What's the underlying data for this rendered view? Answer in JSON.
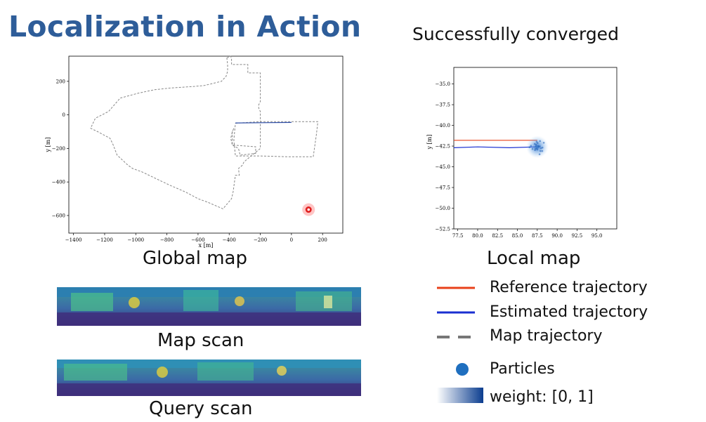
{
  "slide": {
    "title": "Localization in Action",
    "status": "Successfully converged",
    "captions": {
      "global_map": "Global map",
      "local_map": "Local map",
      "map_scan": "Map scan",
      "query_scan": "Query scan"
    }
  },
  "legend": [
    {
      "label": "Reference trajectory",
      "color": "#e8401a",
      "style": "solid"
    },
    {
      "label": "Estimated trajectory",
      "color": "#1a2fd1",
      "style": "solid"
    },
    {
      "label": "Map trajectory",
      "color": "#777777",
      "style": "dashed"
    },
    {
      "label": "Particles",
      "color": "#1f6fbf",
      "style": "dot"
    },
    {
      "label": "weight: [0, 1]",
      "color": "#0b3d8f",
      "style": "gradient"
    }
  ],
  "chart_data": [
    {
      "type": "line",
      "xlabel": "x [m]",
      "ylabel": "y [m]",
      "xlim": [
        -1430,
        330
      ],
      "ylim": [
        -705,
        350
      ],
      "xticks": [
        -1400,
        -1200,
        -1000,
        -800,
        -600,
        -400,
        -200,
        0,
        200
      ],
      "yticks": [
        200,
        0,
        -200,
        -400,
        -600
      ],
      "series": [
        {
          "style": "dashed",
          "x": [
            -415,
            -390,
            -385,
            -385,
            -280,
            -280,
            -200,
            -200,
            -210,
            -210,
            -200,
            -200,
            -305,
            -315,
            -340,
            -335,
            -360,
            -375,
            -385,
            -440,
            -540,
            -600,
            -680,
            -780,
            -870,
            -960,
            -1020,
            -1050,
            -1120,
            -1145,
            -1165,
            -1245,
            -1290,
            -1260,
            -1175,
            -1100,
            -980,
            -880,
            -780,
            -700,
            -620,
            -560,
            -450,
            -420,
            -410,
            -410,
            -415
          ],
          "y": [
            340,
            350,
            330,
            300,
            300,
            250,
            250,
            80,
            60,
            40,
            20,
            -200,
            -280,
            -300,
            -320,
            -360,
            -360,
            -460,
            -500,
            -560,
            -520,
            -500,
            -460,
            -420,
            -380,
            -340,
            -320,
            -300,
            -240,
            -180,
            -140,
            -100,
            -80,
            -20,
            20,
            100,
            130,
            150,
            160,
            165,
            170,
            175,
            200,
            230,
            260,
            300,
            340
          ]
        },
        {
          "style": "dashed",
          "x": [
            -370,
            -380,
            -380,
            -340,
            -330,
            -230,
            -230,
            -380,
            -390,
            -380,
            -370
          ],
          "y": [
            -80,
            -100,
            -180,
            -200,
            -240,
            -230,
            -190,
            -180,
            -140,
            -100,
            -80
          ]
        },
        {
          "style": "dashed",
          "x": [
            -360,
            -200,
            20,
            170,
            160,
            140,
            20,
            -20,
            -200,
            -360,
            -370,
            -360
          ],
          "y": [
            -50,
            -40,
            -40,
            -40,
            -120,
            -250,
            -250,
            -250,
            -245,
            -245,
            -150,
            -50
          ]
        },
        {
          "style": "solid",
          "x": [
            -360,
            0
          ],
          "y": [
            -48,
            -45
          ]
        }
      ],
      "markers": [
        {
          "x": 110,
          "y": -565
        }
      ]
    },
    {
      "type": "scatter",
      "xlim": [
        77,
        97.5
      ],
      "ylim": [
        -52.5,
        -33
      ],
      "xticks": [
        77.5,
        80.0,
        82.5,
        85.0,
        87.5,
        90.0,
        92.5,
        95.0
      ],
      "yticks": [
        -35.0,
        -37.5,
        -40.0,
        -42.5,
        -45.0,
        -47.5,
        -50.0,
        -52.5
      ],
      "ylabel": "y [m]",
      "series": [
        {
          "name": "Reference trajectory",
          "x": [
            77,
            87.5
          ],
          "y": [
            -41.8,
            -41.8
          ]
        },
        {
          "name": "Estimated trajectory",
          "x": [
            77,
            80,
            84,
            87.3
          ],
          "y": [
            -42.7,
            -42.6,
            -42.7,
            -42.6
          ]
        }
      ],
      "particles": {
        "center": [
          87.5,
          -42.6
        ],
        "spread": 0.7
      }
    }
  ]
}
